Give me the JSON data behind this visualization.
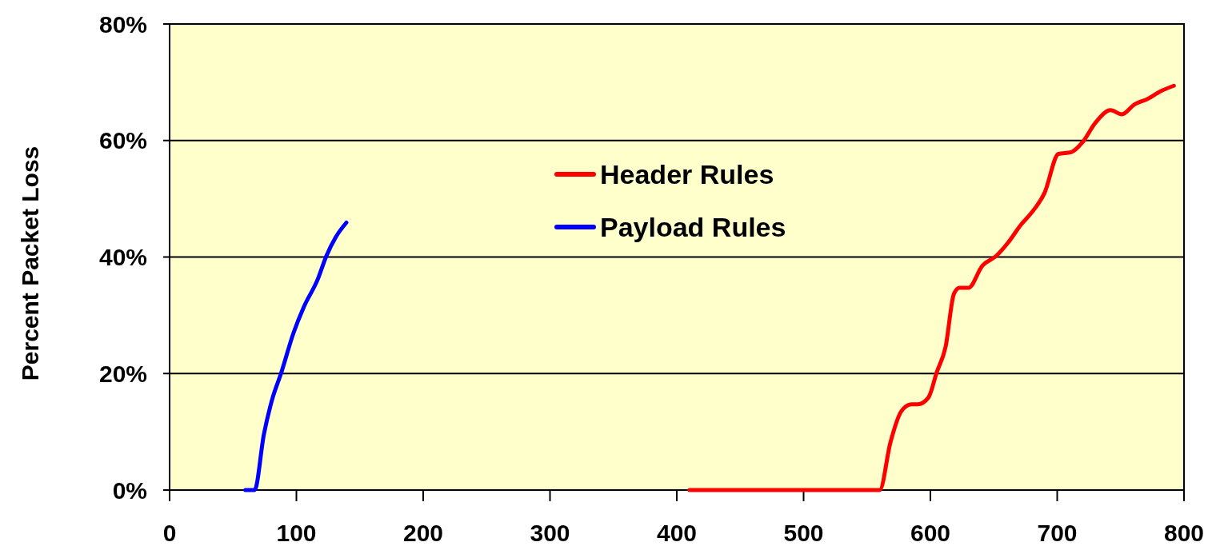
{
  "chart_data": {
    "type": "line",
    "ylabel": "Percent Packet Loss",
    "xlim": [
      0,
      800
    ],
    "xticks": [
      0,
      100,
      200,
      300,
      400,
      500,
      600,
      700,
      800
    ],
    "ylim": [
      0,
      80
    ],
    "yticks": [
      {
        "value": 0,
        "label": "0%"
      },
      {
        "value": 20,
        "label": "20%"
      },
      {
        "value": 40,
        "label": "40%"
      },
      {
        "value": 60,
        "label": "60%"
      },
      {
        "value": 80,
        "label": "80%"
      }
    ],
    "grid": "y",
    "legend": "top",
    "line_style": "solid",
    "marker": "none",
    "series": [
      {
        "name": "Header Rules",
        "color": "#ff0000",
        "x": [
          410,
          450,
          500,
          540,
          560,
          568.5,
          577,
          585,
          590,
          598.5,
          605,
          612,
          618.6,
          623,
          630,
          641,
          652,
          661,
          672,
          679,
          690,
          701,
          711,
          720,
          730,
          742,
          751,
          761,
          771,
          782,
          792
        ],
        "values": [
          0,
          0,
          0,
          0,
          0,
          8.2,
          13.5,
          14.7,
          14.7,
          15.9,
          20.2,
          24.6,
          33.7,
          34.7,
          34.7,
          38.5,
          40.2,
          42.4,
          45.7,
          47.4,
          51,
          57.7,
          58,
          59.7,
          63,
          65.2,
          64.5,
          66.2,
          67.1,
          68.5,
          69.4
        ]
      },
      {
        "name": "Payload Rules",
        "color": "#0000ff",
        "x": [
          59.7,
          67,
          74.4,
          80.8,
          88,
          97.6,
          106,
          116.5,
          123.7,
          131,
          139.4
        ],
        "values": [
          0,
          0,
          9.6,
          15.5,
          20.1,
          26.9,
          31.5,
          36,
          40.2,
          43.4,
          45.9
        ]
      }
    ]
  }
}
